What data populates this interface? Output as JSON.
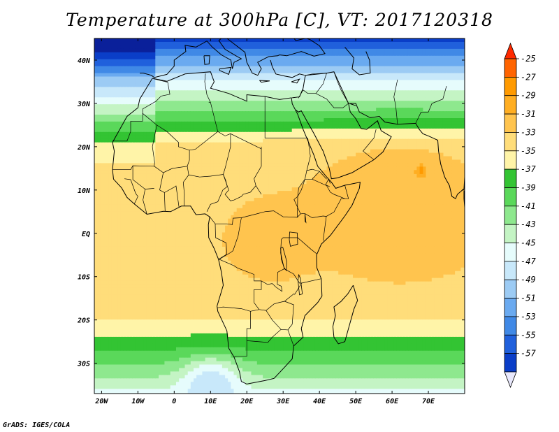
{
  "title": "Temperature at 300hPa [C], VT: 2017120318",
  "credit": "GrADS: IGES/COLA",
  "chart_data": {
    "type": "heatmap",
    "variable": "Temperature at 300hPa",
    "unit": "C",
    "valid_time": "2017120318",
    "lon_range": [
      -22,
      80
    ],
    "lat_range": [
      -37,
      45
    ],
    "x_ticks": [
      {
        "value": -20,
        "label": "20W"
      },
      {
        "value": -10,
        "label": "10W"
      },
      {
        "value": 0,
        "label": "0"
      },
      {
        "value": 10,
        "label": "10E"
      },
      {
        "value": 20,
        "label": "20E"
      },
      {
        "value": 30,
        "label": "30E"
      },
      {
        "value": 40,
        "label": "40E"
      },
      {
        "value": 50,
        "label": "50E"
      },
      {
        "value": 60,
        "label": "60E"
      },
      {
        "value": 70,
        "label": "70E"
      }
    ],
    "y_ticks": [
      {
        "value": 40,
        "label": "40N"
      },
      {
        "value": 30,
        "label": "30N"
      },
      {
        "value": 20,
        "label": "20N"
      },
      {
        "value": 10,
        "label": "10N"
      },
      {
        "value": 0,
        "label": "EQ"
      },
      {
        "value": -10,
        "label": "10S"
      },
      {
        "value": -20,
        "label": "20S"
      },
      {
        "value": -30,
        "label": "30S"
      }
    ],
    "colorbar": {
      "labels": [
        "-25",
        "-27",
        "-29",
        "-31",
        "-33",
        "-35",
        "-37",
        "-39",
        "-41",
        "-43",
        "-45",
        "-47",
        "-49",
        "-51",
        "-53",
        "-55",
        "-57"
      ],
      "colors_top_to_bottom": [
        "#ff2a00",
        "#ff6400",
        "#ff9a00",
        "#ffae22",
        "#ffc44e",
        "#ffdd7a",
        "#fff4a8",
        "#33c433",
        "#5ad85a",
        "#8ee88e",
        "#c4f4c4",
        "#e6fcfc",
        "#c8e8fa",
        "#9ccbf4",
        "#6aaaf0",
        "#4089e6",
        "#2060dc",
        "#0a3ec8",
        "#0a209a"
      ]
    },
    "contour_bands": [
      {
        "value": -57,
        "color": "#0a209a"
      },
      {
        "value": -55,
        "color": "#0a3ec8"
      },
      {
        "value": -53,
        "color": "#2060dc"
      },
      {
        "value": -51,
        "color": "#4089e6"
      },
      {
        "value": -49,
        "color": "#6aaaf0"
      },
      {
        "value": -47,
        "color": "#9ccbf4"
      },
      {
        "value": -45,
        "color": "#c8e8fa"
      },
      {
        "value": -43,
        "color": "#e6fcfc"
      },
      {
        "value": -41,
        "color": "#c4f4c4"
      },
      {
        "value": -39,
        "color": "#8ee88e"
      },
      {
        "value": -37,
        "color": "#5ad85a"
      },
      {
        "value": -35,
        "color": "#33c433"
      },
      {
        "value": -33,
        "color": "#fff4a8"
      },
      {
        "value": -31,
        "color": "#ffdd7a"
      },
      {
        "value": -29,
        "color": "#ffc44e"
      },
      {
        "value": -27,
        "color": "#ffae22"
      },
      {
        "value": -25,
        "color": "#ff9a00"
      }
    ]
  }
}
